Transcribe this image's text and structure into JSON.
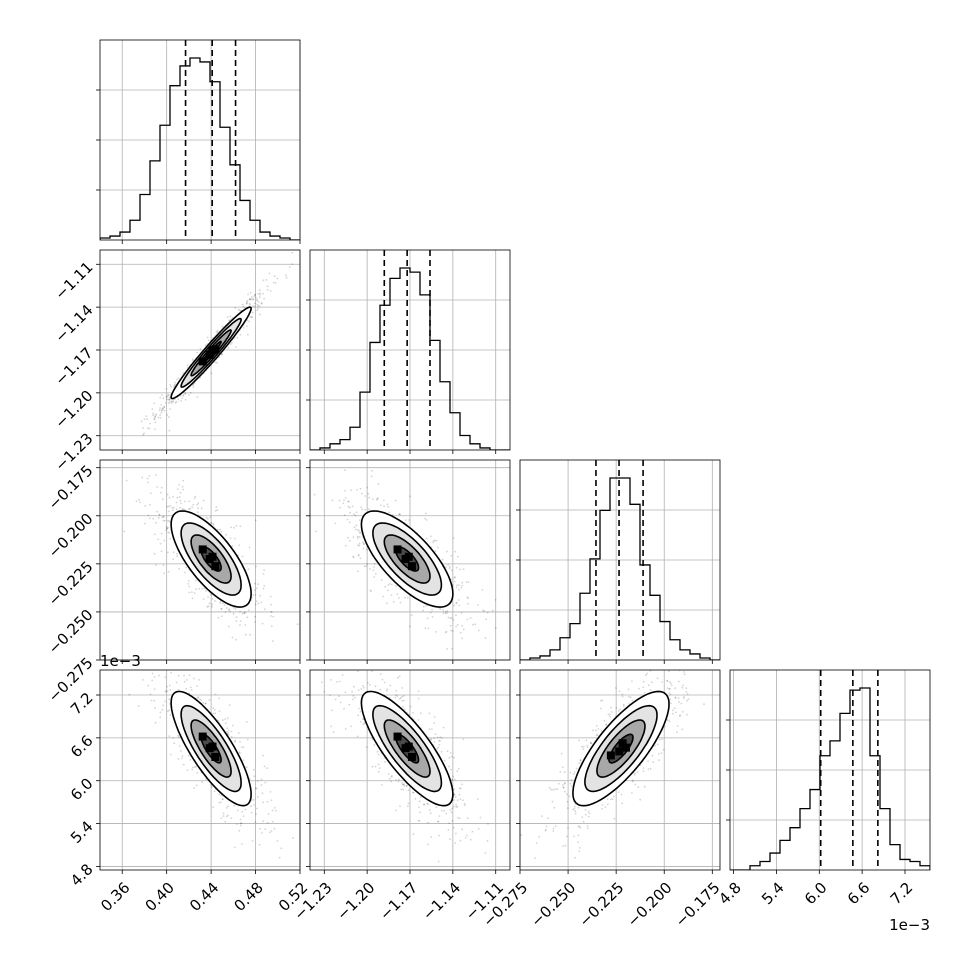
{
  "chart_data": {
    "type": "corner",
    "parameters": [
      {
        "id": "p1",
        "range": [
          0.34,
          0.52
        ],
        "ticks": [
          0.36,
          0.4,
          0.44,
          0.48,
          0.52
        ],
        "tick_labels": [
          "0.36",
          "0.40",
          "0.44",
          "0.48",
          "0.52"
        ],
        "quantiles": [
          0.417,
          0.441,
          0.462
        ],
        "hist_edges": [
          0.34,
          0.52
        ],
        "hist_counts": [
          1,
          2,
          4,
          10,
          23,
          40,
          58,
          78,
          88,
          92,
          90,
          80,
          57,
          38,
          20,
          10,
          4,
          2,
          1,
          0
        ]
      },
      {
        "id": "p2",
        "range": [
          -1.24,
          -1.1
        ],
        "ticks": [
          -1.23,
          -1.2,
          -1.17,
          -1.14,
          -1.11
        ],
        "tick_labels": [
          "−1.23",
          "−1.20",
          "−1.17",
          "−1.14",
          "−1.11"
        ],
        "quantiles": [
          -1.188,
          -1.172,
          -1.156
        ],
        "hist_edges": [
          -1.24,
          -1.1
        ],
        "hist_counts": [
          0,
          1,
          3,
          5,
          11,
          28,
          52,
          70,
          83,
          88,
          86,
          75,
          53,
          33,
          18,
          7,
          3,
          1,
          0,
          0
        ]
      },
      {
        "id": "p3",
        "range": [
          -0.275,
          -0.171
        ],
        "ticks": [
          -0.275,
          -0.25,
          -0.225,
          -0.2,
          -0.175
        ],
        "tick_labels": [
          "−0.275",
          "−0.250",
          "−0.225",
          "−0.200",
          "−0.175"
        ],
        "quantiles": [
          -0.2355,
          -0.2235,
          -0.211
        ],
        "hist_edges": [
          -0.275,
          -0.171
        ],
        "hist_counts": [
          0,
          1,
          2,
          5,
          11,
          18,
          33,
          50,
          74,
          90,
          90,
          77,
          47,
          32,
          19,
          10,
          5,
          3,
          1,
          0
        ]
      },
      {
        "id": "p4",
        "range": [
          4.75,
          7.55
        ],
        "ticks": [
          4.8,
          5.4,
          6.0,
          6.6,
          7.2
        ],
        "tick_labels": [
          "4.8",
          "5.4",
          "6.0",
          "6.6",
          "7.2"
        ],
        "offset_text": "1e−3",
        "quantiles": [
          6.02,
          6.47,
          6.82
        ],
        "hist_edges": [
          4.75,
          7.55
        ],
        "hist_counts": [
          0,
          0,
          2,
          4,
          8,
          14,
          20,
          29,
          38,
          54,
          61,
          74,
          85,
          86,
          54,
          29,
          12,
          5,
          4,
          2
        ]
      }
    ],
    "pairs": [
      {
        "x": "p1",
        "y": "p2",
        "center": [
          0.44,
          -1.172
        ],
        "sigma": [
          0.018,
          0.016
        ],
        "rho": 0.97
      },
      {
        "x": "p1",
        "y": "p3",
        "center": [
          0.44,
          -0.2225
        ],
        "sigma": [
          0.018,
          0.0125
        ],
        "rho": -0.72
      },
      {
        "x": "p2",
        "y": "p3",
        "center": [
          -1.172,
          -0.2225
        ],
        "sigma": [
          0.016,
          0.0125
        ],
        "rho": -0.72
      },
      {
        "x": "p1",
        "y": "p4",
        "center": [
          0.44,
          6.45
        ],
        "sigma": [
          0.018,
          0.4
        ],
        "rho": -0.8
      },
      {
        "x": "p2",
        "y": "p4",
        "center": [
          -1.172,
          6.45
        ],
        "sigma": [
          0.016,
          0.4
        ],
        "rho": -0.8
      },
      {
        "x": "p3",
        "y": "p4",
        "center": [
          -0.2225,
          6.45
        ],
        "sigma": [
          0.0125,
          0.4
        ],
        "rho": 0.78
      }
    ],
    "grid": true,
    "contour_levels_sigma": [
      0.5,
      1.0,
      1.5,
      2.0
    ]
  }
}
